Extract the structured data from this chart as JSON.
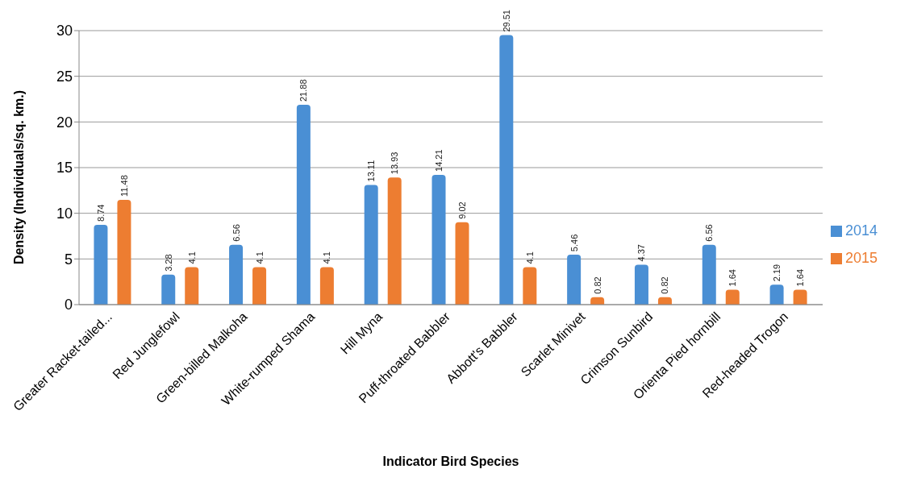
{
  "chart_data": {
    "type": "bar",
    "xlabel": "Indicator Bird Species",
    "ylabel": "Density (Individuals/sq. km.)",
    "categories": [
      "Greater Racket-tailed...",
      "Red Junglefowl",
      "Green-billed Malkoha",
      "White-rumped Shama",
      "Hill Myna",
      "Puff-throated Babbler",
      "Abbott's Babbler",
      "Scarlet Minivet",
      "Crimson Sunbird",
      "Orienta Pied hornbill",
      "Red-headed Trogon"
    ],
    "series": [
      {
        "name": "2014",
        "color": "#4a8fd4",
        "values": [
          8.74,
          3.28,
          6.56,
          21.88,
          13.11,
          14.21,
          29.51,
          5.46,
          4.37,
          6.56,
          2.19
        ]
      },
      {
        "name": "2015",
        "color": "#ed7d31",
        "values": [
          11.48,
          4.1,
          4.1,
          4.1,
          13.93,
          9.02,
          4.1,
          0.82,
          0.82,
          1.64,
          1.64
        ]
      }
    ],
    "ylim": [
      0,
      30
    ],
    "yticks": [
      0,
      5,
      10,
      15,
      20,
      25,
      30
    ],
    "grid": "y",
    "legend": "right",
    "data_labels": true
  }
}
